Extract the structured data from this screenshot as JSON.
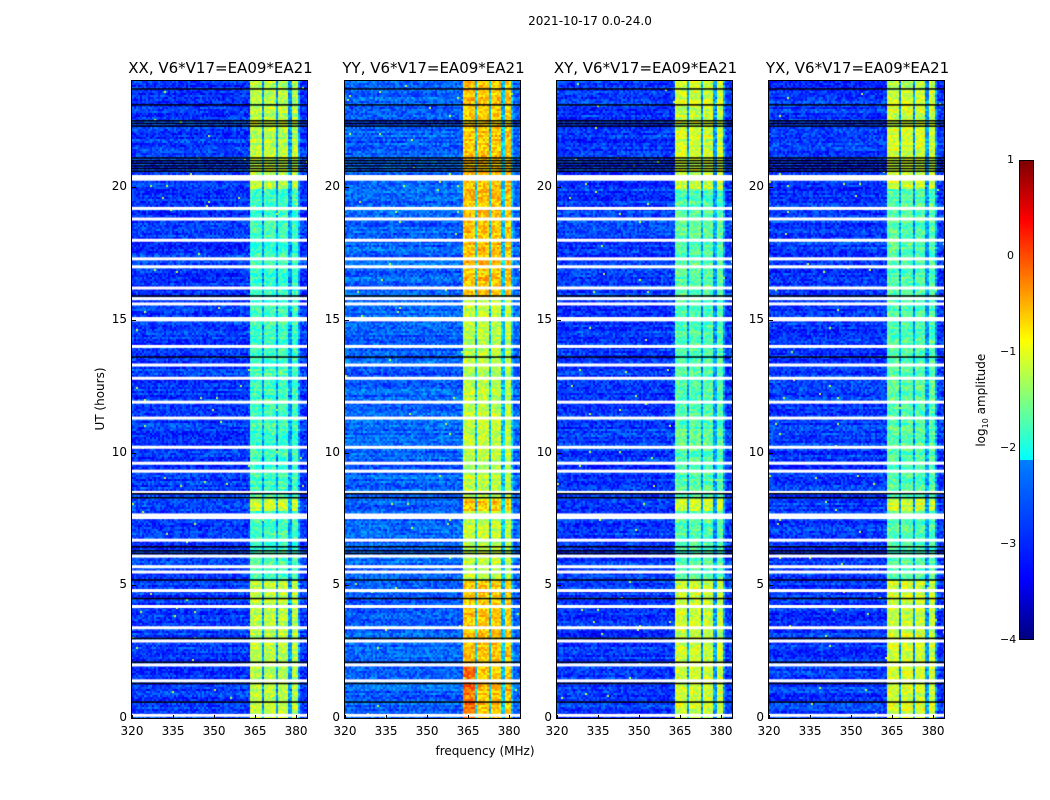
{
  "figure": {
    "suptitle": "2021-10-17 0.0-24.0",
    "ylabel": "UT (hours)",
    "xlabel": "frequency (MHz)"
  },
  "chart_data": {
    "type": "heatmap",
    "title": "2021-10-17 0.0-24.0",
    "xlabel": "frequency (MHz)",
    "ylabel": "UT (hours)",
    "xlim": [
      320,
      384
    ],
    "ylim": [
      0,
      24
    ],
    "xticks": [
      "320",
      "335",
      "350",
      "365",
      "380"
    ],
    "yticks": [
      "0",
      "5",
      "10",
      "15",
      "20"
    ],
    "panels": [
      {
        "title": "XX, V6*V17=EA09*EA21",
        "background_level": -3.1,
        "band_level": -1.8,
        "low_band_level": -1.2
      },
      {
        "title": "YY, V6*V17=EA09*EA21",
        "background_level": -2.9,
        "band_level": -1.2,
        "low_band_level": -0.6
      },
      {
        "title": "XY, V6*V17=EA09*EA21",
        "background_level": -3.1,
        "band_level": -1.7,
        "low_band_level": -1.1
      },
      {
        "title": "YX, V6*V17=EA09*EA21",
        "background_level": -3.1,
        "band_level": -1.7,
        "low_band_level": -1.1
      }
    ],
    "band_channels_mhz": [
      [
        363,
        367
      ],
      [
        368,
        372
      ],
      [
        373,
        377
      ],
      [
        378,
        380
      ]
    ],
    "flagged_hours_white": [
      0.1,
      1.4,
      2.0,
      2.9,
      3.4,
      4.2,
      4.8,
      5.5,
      5.7,
      6.1,
      6.7,
      7.55,
      7.65,
      8.5,
      9.3,
      9.6,
      10.2,
      11.3,
      11.9,
      12.8,
      13.3,
      14.0,
      15.0,
      15.05,
      15.6,
      15.8,
      16.2,
      17.0,
      17.3,
      18.0,
      18.8,
      19.2,
      20.3,
      20.4
    ],
    "flagged_hours_black": [
      0.6,
      1.3,
      2.1,
      3.0,
      4.5,
      5.2,
      6.2,
      6.3,
      6.45,
      8.3,
      8.45,
      13.6,
      15.9,
      20.6,
      20.7,
      20.8,
      20.9,
      21.0,
      21.1,
      22.3,
      22.4,
      22.5,
      23.1,
      23.7
    ],
    "colorbar": {
      "label": "log10 amplitude",
      "range": [
        -4,
        1
      ],
      "ticks": [
        "1",
        "0",
        "−1",
        "−2",
        "−3",
        "−4"
      ],
      "colormap": "jet"
    }
  }
}
